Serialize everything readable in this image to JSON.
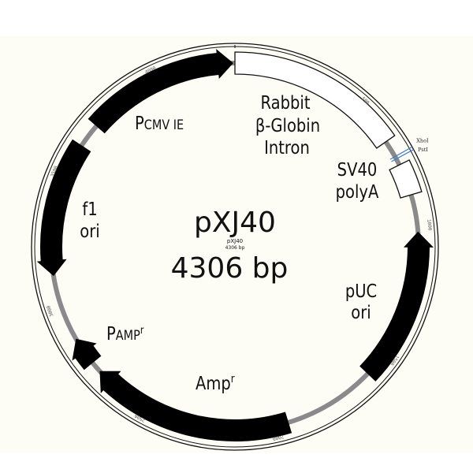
{
  "plasmid": {
    "name": "pXJ40",
    "size_label": "4306 bp",
    "small_name": "pXJ40",
    "small_size": "4306 bp",
    "total_bp": 4306
  },
  "features": [
    {
      "id": "rabbit-globin",
      "label_lines": [
        "Rabbit",
        "β-Globin",
        "Intron"
      ],
      "style": "outline",
      "start": 0,
      "end": 660
    },
    {
      "id": "sv40-polya",
      "label_lines": [
        "SV40",
        "polyA"
      ],
      "style": "outline",
      "start": 760,
      "end": 880
    },
    {
      "id": "puc-ori",
      "label_lines": [
        "pUC",
        "ori"
      ],
      "style": "arrow-ccw",
      "start": 1020,
      "end": 1600
    },
    {
      "id": "ampr",
      "label_main": "Amp",
      "label_sup": "r",
      "style": "arrow-cw",
      "start": 1950,
      "end": 2720
    },
    {
      "id": "pampr",
      "label_main": "P",
      "label_small": "AMP",
      "label_sup": "r",
      "style": "arrow-cw",
      "start": 2760,
      "end": 2870
    },
    {
      "id": "f1-ori",
      "label_lines": [
        "f1",
        "ori"
      ],
      "style": "arrow-ccw",
      "start": 3120,
      "end": 3630
    },
    {
      "id": "pcmv-ie",
      "label_main": "P",
      "label_small": "CMV IE",
      "style": "arrow-cw",
      "start": 3720,
      "end": 4300
    }
  ],
  "sites": [
    {
      "name": "XhoI",
      "pos": 725
    },
    {
      "name": "PstI",
      "pos": 735
    }
  ],
  "ticks": [
    "500",
    "1000",
    "1500",
    "2000",
    "2500",
    "3000",
    "3500",
    "4000"
  ]
}
